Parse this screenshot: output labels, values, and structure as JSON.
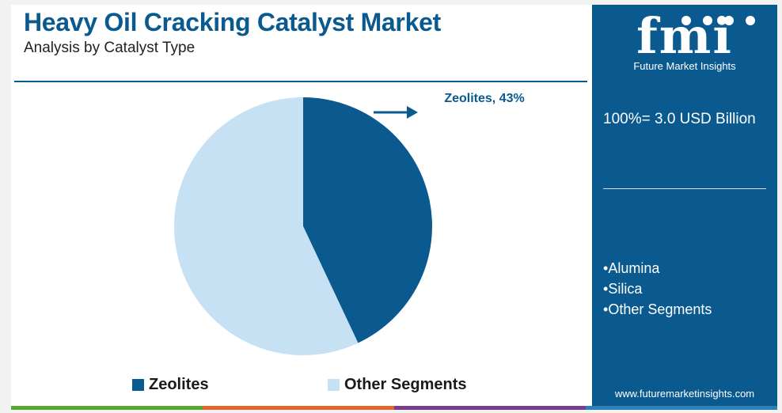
{
  "chart_data": {
    "type": "pie",
    "title": "Heavy Oil Cracking Catalyst Market",
    "subtitle": "Analysis by Catalyst Type",
    "slices": [
      {
        "label": "Zeolites",
        "value": 43,
        "color": "#0b5a8f"
      },
      {
        "label": "Other Segments",
        "value": 57,
        "color": "#c5e1f3"
      }
    ],
    "callout": "Zeolites, 43%",
    "legend": [
      "Zeolites",
      "Other Segments"
    ],
    "legend_placement": "bottom"
  },
  "side_panel": {
    "logo_text": "fmi",
    "logo_subtitle": "Future Market Insights",
    "total": "100%= 3.0 USD Billion",
    "segments": [
      "Alumina",
      "Silica",
      "Other Segments"
    ],
    "website": "www.futuremarketinsights.com"
  },
  "colors": {
    "brand": "#0b5a8f",
    "light": "#c5e1f3",
    "bar": [
      "#5aa832",
      "#e0662c",
      "#7a3c8c",
      "#2c80b8"
    ]
  }
}
